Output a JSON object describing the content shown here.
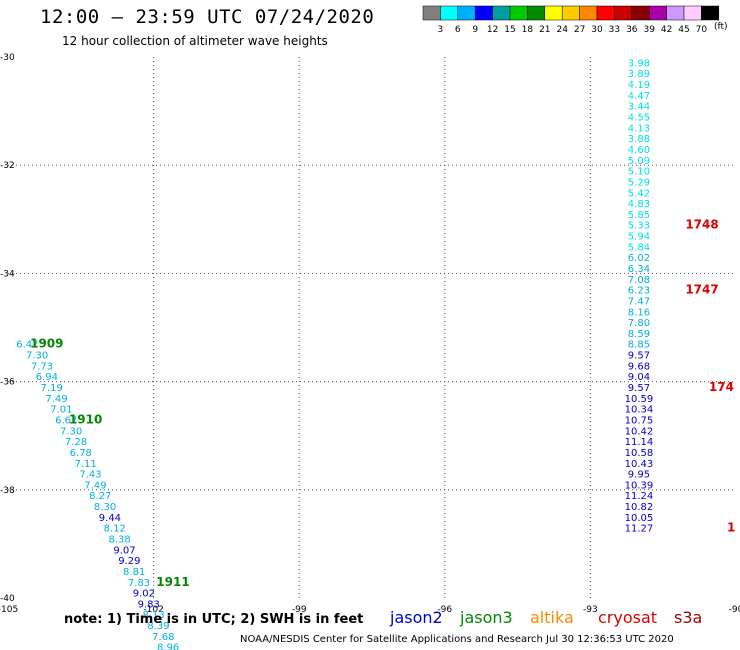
{
  "title": "12:00 – 23:59 UTC 07/24/2020",
  "subtitle": "12 hour collection of altimeter wave heights",
  "note": "note:  1) Time is in UTC;  2) SWH is in feet",
  "credit": "NOAA/NESDIS Center for Satellite Applications and Research     Jul 30 12:36:53 UTC 2020",
  "legend": [
    {
      "name": "jason2",
      "color": "#0000cc"
    },
    {
      "name": "jason3",
      "color": "#008800"
    },
    {
      "name": "altika",
      "color": "#ff8800"
    },
    {
      "name": "cryosat",
      "color": "#dd0000"
    },
    {
      "name": "s3a",
      "color": "#aa0000"
    }
  ],
  "colorbar": {
    "unit": "(ft)",
    "labels": [
      "3",
      "6",
      "9",
      "12",
      "15",
      "18",
      "21",
      "24",
      "27",
      "30",
      "33",
      "36",
      "39",
      "42",
      "45",
      "70"
    ],
    "colors": [
      "#808080",
      "#00ffff",
      "#00b0ff",
      "#0000ff",
      "#00a0a0",
      "#00cc00",
      "#008800",
      "#ffff00",
      "#ffcc00",
      "#ff8800",
      "#ff0000",
      "#cc0000",
      "#880000",
      "#aa00aa",
      "#cc99ff",
      "#ffccff",
      "#000000"
    ]
  },
  "chart_data": {
    "type": "scatter",
    "xlim": [
      -105,
      -90
    ],
    "ylim": [
      -40,
      -30
    ],
    "x_ticks": [
      -105,
      -102,
      -99,
      -96,
      -93,
      -90
    ],
    "y_ticks": [
      -30,
      -32,
      -34,
      -36,
      -38,
      -40
    ],
    "x_tick_labels": [
      "-105",
      "-102",
      "-99",
      "-96",
      "-93",
      "-90"
    ],
    "y_tick_labels": [
      "-30",
      "-32",
      "-34",
      "-36",
      "-38",
      "-40"
    ],
    "grid": true,
    "series": [
      {
        "color_note": "track 1 (west)",
        "points": [
          {
            "x": -104.6,
            "y": -35.3,
            "v": "6.47",
            "c": "#00b0e0"
          },
          {
            "x": -104.4,
            "y": -35.5,
            "v": "7.30",
            "c": "#00b0e0"
          },
          {
            "x": -104.3,
            "y": -35.7,
            "v": "7.73",
            "c": "#00b0e0"
          },
          {
            "x": -104.2,
            "y": -35.9,
            "v": "6.94",
            "c": "#00b0e0"
          },
          {
            "x": -104.1,
            "y": -36.1,
            "v": "7.19",
            "c": "#00b0e0"
          },
          {
            "x": -104.0,
            "y": -36.3,
            "v": "7.49",
            "c": "#00b0e0"
          },
          {
            "x": -103.9,
            "y": -36.5,
            "v": "7.01",
            "c": "#00b0e0"
          },
          {
            "x": -103.8,
            "y": -36.7,
            "v": "6.67",
            "c": "#00b0e0"
          },
          {
            "x": -103.7,
            "y": -36.9,
            "v": "7.30",
            "c": "#00b0e0"
          },
          {
            "x": -103.6,
            "y": -37.1,
            "v": "7.28",
            "c": "#00b0e0"
          },
          {
            "x": -103.5,
            "y": -37.3,
            "v": "6.78",
            "c": "#00b0e0"
          },
          {
            "x": -103.4,
            "y": -37.5,
            "v": "7.11",
            "c": "#00b0e0"
          },
          {
            "x": -103.3,
            "y": -37.7,
            "v": "7.43",
            "c": "#00b0e0"
          },
          {
            "x": -103.2,
            "y": -37.9,
            "v": "7.49",
            "c": "#00b0e0"
          },
          {
            "x": -103.1,
            "y": -38.1,
            "v": "8.27",
            "c": "#00b0e0"
          },
          {
            "x": -103.0,
            "y": -38.3,
            "v": "8.30",
            "c": "#00b0e0"
          },
          {
            "x": -102.9,
            "y": -38.5,
            "v": "9.44",
            "c": "#0000cc"
          },
          {
            "x": -102.8,
            "y": -38.7,
            "v": "8.12",
            "c": "#00b0e0"
          },
          {
            "x": -102.7,
            "y": -38.9,
            "v": "8.38",
            "c": "#00b0e0"
          },
          {
            "x": -102.6,
            "y": -39.1,
            "v": "9.07",
            "c": "#0000cc"
          },
          {
            "x": -102.5,
            "y": -39.3,
            "v": "9.29",
            "c": "#0000cc"
          },
          {
            "x": -102.4,
            "y": -39.5,
            "v": "8.81",
            "c": "#00b0e0"
          },
          {
            "x": -102.3,
            "y": -39.7,
            "v": "7.83",
            "c": "#00b0e0"
          },
          {
            "x": -102.2,
            "y": -39.9,
            "v": "9.02",
            "c": "#0000cc"
          },
          {
            "x": -102.1,
            "y": -40.1,
            "v": "9.83",
            "c": "#0000cc"
          },
          {
            "x": -102.0,
            "y": -40.3,
            "v": "8.13",
            "c": "#00b0e0"
          },
          {
            "x": -101.9,
            "y": -40.5,
            "v": "8.39",
            "c": "#00b0e0"
          },
          {
            "x": -101.8,
            "y": -40.7,
            "v": "7.68",
            "c": "#00b0e0"
          },
          {
            "x": -101.7,
            "y": -40.9,
            "v": "8.96",
            "c": "#00b0e0"
          }
        ]
      },
      {
        "color_note": "track 2 (east)",
        "points": [
          {
            "x": -92.0,
            "y": -30.1,
            "v": "3.98",
            "c": "#00e0e0"
          },
          {
            "x": -92.0,
            "y": -30.3,
            "v": "3.89",
            "c": "#00e0e0"
          },
          {
            "x": -92.0,
            "y": -30.5,
            "v": "4.19",
            "c": "#00e0e0"
          },
          {
            "x": -92.0,
            "y": -30.7,
            "v": "4.47",
            "c": "#00e0e0"
          },
          {
            "x": -92.0,
            "y": -30.9,
            "v": "3.44",
            "c": "#00e0e0"
          },
          {
            "x": -92.0,
            "y": -31.1,
            "v": "4.55",
            "c": "#00e0e0"
          },
          {
            "x": -92.0,
            "y": -31.3,
            "v": "4.13",
            "c": "#00e0e0"
          },
          {
            "x": -92.0,
            "y": -31.5,
            "v": "3.88",
            "c": "#00e0e0"
          },
          {
            "x": -92.0,
            "y": -31.7,
            "v": "4.60",
            "c": "#00e0e0"
          },
          {
            "x": -92.0,
            "y": -31.9,
            "v": "5.09",
            "c": "#00e0e0"
          },
          {
            "x": -92.0,
            "y": -32.1,
            "v": "5.10",
            "c": "#00e0e0"
          },
          {
            "x": -92.0,
            "y": -32.3,
            "v": "5.29",
            "c": "#00e0e0"
          },
          {
            "x": -92.0,
            "y": -32.5,
            "v": "5.42",
            "c": "#00e0e0"
          },
          {
            "x": -92.0,
            "y": -32.7,
            "v": "4.83",
            "c": "#00e0e0"
          },
          {
            "x": -92.0,
            "y": -32.9,
            "v": "5.85",
            "c": "#00e0e0"
          },
          {
            "x": -92.0,
            "y": -33.1,
            "v": "5.33",
            "c": "#00e0e0"
          },
          {
            "x": -92.0,
            "y": -33.3,
            "v": "5.94",
            "c": "#00e0e0"
          },
          {
            "x": -92.0,
            "y": -33.5,
            "v": "5.84",
            "c": "#00e0e0"
          },
          {
            "x": -92.0,
            "y": -33.7,
            "v": "6.02",
            "c": "#00b0e0"
          },
          {
            "x": -92.0,
            "y": -33.9,
            "v": "6.34",
            "c": "#00b0e0"
          },
          {
            "x": -92.0,
            "y": -34.1,
            "v": "7.08",
            "c": "#00b0e0"
          },
          {
            "x": -92.0,
            "y": -34.3,
            "v": "6.23",
            "c": "#00b0e0"
          },
          {
            "x": -92.0,
            "y": -34.5,
            "v": "7.47",
            "c": "#00b0e0"
          },
          {
            "x": -92.0,
            "y": -34.7,
            "v": "8.16",
            "c": "#00b0e0"
          },
          {
            "x": -92.0,
            "y": -34.9,
            "v": "7.80",
            "c": "#00b0e0"
          },
          {
            "x": -92.0,
            "y": -35.1,
            "v": "8.59",
            "c": "#00b0e0"
          },
          {
            "x": -92.0,
            "y": -35.3,
            "v": "8.85",
            "c": "#00b0e0"
          },
          {
            "x": -92.0,
            "y": -35.5,
            "v": "9.57",
            "c": "#0000cc"
          },
          {
            "x": -92.0,
            "y": -35.7,
            "v": "9.68",
            "c": "#0000cc"
          },
          {
            "x": -92.0,
            "y": -35.9,
            "v": "9.04",
            "c": "#0000cc"
          },
          {
            "x": -92.0,
            "y": -36.1,
            "v": "9.57",
            "c": "#0000cc"
          },
          {
            "x": -92.0,
            "y": -36.3,
            "v": "10.59",
            "c": "#0000cc"
          },
          {
            "x": -92.0,
            "y": -36.5,
            "v": "10.34",
            "c": "#0000cc"
          },
          {
            "x": -92.0,
            "y": -36.7,
            "v": "10.75",
            "c": "#0000cc"
          },
          {
            "x": -92.0,
            "y": -36.9,
            "v": "10.42",
            "c": "#0000cc"
          },
          {
            "x": -92.0,
            "y": -37.1,
            "v": "11.14",
            "c": "#0000cc"
          },
          {
            "x": -92.0,
            "y": -37.3,
            "v": "10.58",
            "c": "#0000cc"
          },
          {
            "x": -92.0,
            "y": -37.5,
            "v": "10.43",
            "c": "#0000cc"
          },
          {
            "x": -92.0,
            "y": -37.7,
            "v": "9.95",
            "c": "#0000cc"
          },
          {
            "x": -92.0,
            "y": -37.9,
            "v": "10.39",
            "c": "#0000cc"
          },
          {
            "x": -92.0,
            "y": -38.1,
            "v": "11.24",
            "c": "#0000cc"
          },
          {
            "x": -92.0,
            "y": -38.3,
            "v": "10.82",
            "c": "#0000cc"
          },
          {
            "x": -92.0,
            "y": -38.5,
            "v": "10.05",
            "c": "#0000cc"
          },
          {
            "x": -92.0,
            "y": -38.7,
            "v": "11.27",
            "c": "#0000cc"
          }
        ]
      }
    ],
    "time_labels": [
      {
        "text": "1909",
        "color": "#008800",
        "x": -104.2,
        "y": -35.3
      },
      {
        "text": "1910",
        "color": "#008800",
        "x": -103.4,
        "y": -36.7
      },
      {
        "text": "1911",
        "color": "#008800",
        "x": -101.6,
        "y": -39.7
      },
      {
        "text": "1748",
        "color": "#dd0000",
        "x": -90.7,
        "y": -33.1
      },
      {
        "text": "1747",
        "color": "#dd0000",
        "x": -90.7,
        "y": -34.3
      },
      {
        "text": "174",
        "color": "#dd0000",
        "x": -90.3,
        "y": -36.1
      },
      {
        "text": "1",
        "color": "#dd0000",
        "x": -90.1,
        "y": -38.7
      }
    ]
  }
}
